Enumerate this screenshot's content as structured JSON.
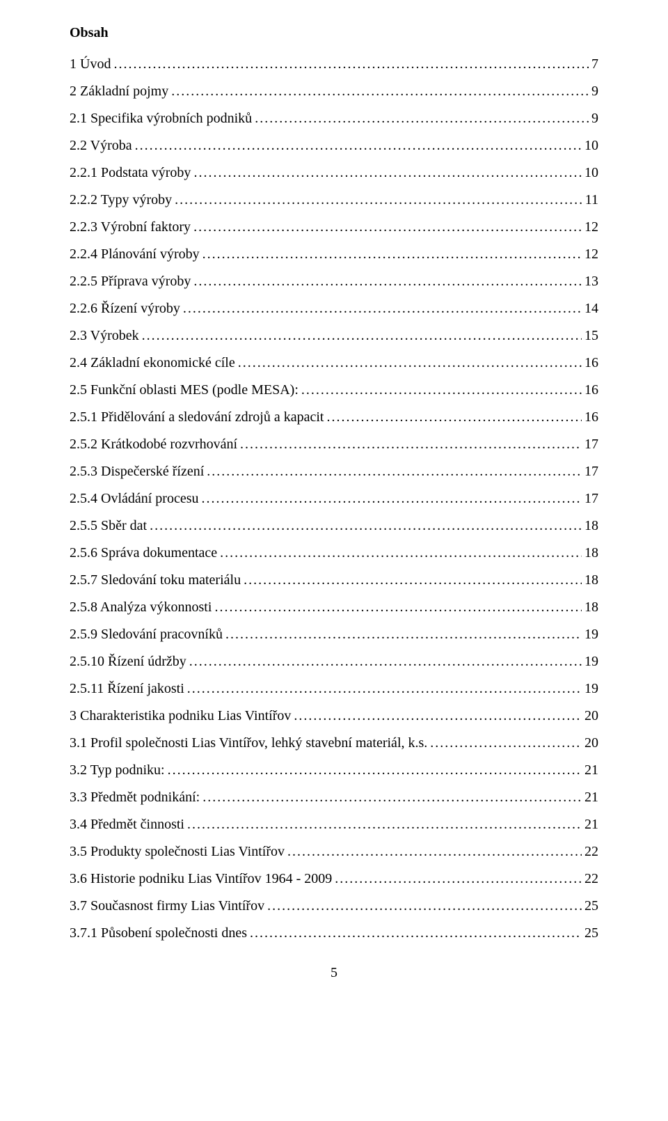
{
  "heading": "Obsah",
  "entries": [
    {
      "label": "1 Úvod",
      "page": "7",
      "indent": 0
    },
    {
      "label": "2 Základní pojmy",
      "page": "9",
      "indent": 0
    },
    {
      "label": "2.1 Specifika výrobních podniků",
      "page": "9",
      "indent": 0
    },
    {
      "label": "2.2 Výroba",
      "page": "10",
      "indent": 0
    },
    {
      "label": "2.2.1 Podstata výroby",
      "page": "10",
      "indent": 0
    },
    {
      "label": "2.2.2 Typy výroby",
      "page": "11",
      "indent": 0
    },
    {
      "label": "2.2.3 Výrobní faktory",
      "page": "12",
      "indent": 0
    },
    {
      "label": "2.2.4 Plánování výroby",
      "page": "12",
      "indent": 0
    },
    {
      "label": "2.2.5 Příprava výroby",
      "page": "13",
      "indent": 0
    },
    {
      "label": "2.2.6 Řízení výroby",
      "page": "14",
      "indent": 0
    },
    {
      "label": "2.3 Výrobek",
      "page": "15",
      "indent": 0
    },
    {
      "label": "2.4 Základní ekonomické cíle",
      "page": "16",
      "indent": 0
    },
    {
      "label": "2.5 Funkční oblasti MES (podle MESA):",
      "page": "16",
      "indent": 0
    },
    {
      "label": "2.5.1 Přidělování a sledování zdrojů a kapacit",
      "page": "16",
      "indent": 0
    },
    {
      "label": "2.5.2 Krátkodobé rozvrhování",
      "page": "17",
      "indent": 0
    },
    {
      "label": "2.5.3 Dispečerské řízení",
      "page": "17",
      "indent": 0
    },
    {
      "label": "2.5.4 Ovládání procesu",
      "page": "17",
      "indent": 0
    },
    {
      "label": "2.5.5 Sběr dat",
      "page": "18",
      "indent": 0
    },
    {
      "label": "2.5.6 Správa dokumentace",
      "page": "18",
      "indent": 0
    },
    {
      "label": "2.5.7 Sledování toku materiálu",
      "page": "18",
      "indent": 0
    },
    {
      "label": "2.5.8 Analýza výkonnosti",
      "page": "18",
      "indent": 0
    },
    {
      "label": "2.5.9 Sledování pracovníků",
      "page": "19",
      "indent": 0
    },
    {
      "label": "2.5.10 Řízení údržby",
      "page": "19",
      "indent": 0
    },
    {
      "label": "2.5.11 Řízení jakosti",
      "page": "19",
      "indent": 0
    },
    {
      "label": "3 Charakteristika podniku Lias Vintířov",
      "page": "20",
      "indent": 0
    },
    {
      "label": "3.1 Profil společnosti Lias Vintířov, lehký stavební materiál, k.s.",
      "page": "20",
      "indent": 0
    },
    {
      "label": "3.2 Typ podniku:",
      "page": "21",
      "indent": 0
    },
    {
      "label": "3.3 Předmět podnikání:",
      "page": "21",
      "indent": 0
    },
    {
      "label": "3.4 Předmět činnosti",
      "page": "21",
      "indent": 0
    },
    {
      "label": "3.5 Produkty společnosti Lias Vintířov",
      "page": "22",
      "indent": 0
    },
    {
      "label": "3.6 Historie podniku Lias Vintířov 1964 - 2009",
      "page": "22",
      "indent": 0
    },
    {
      "label": "3.7 Současnost firmy Lias Vintířov",
      "page": "25",
      "indent": 0
    },
    {
      "label": "3.7.1 Působení společnosti dnes",
      "page": "25",
      "indent": 0
    }
  ],
  "pageNumber": "5"
}
